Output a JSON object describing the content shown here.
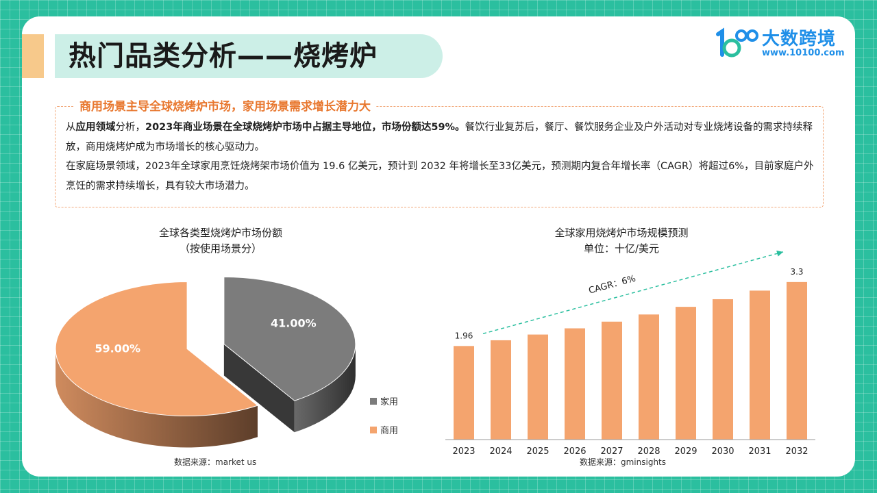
{
  "header": {
    "title": "热门品类分析——烧烤炉",
    "logo_name": "大数跨境",
    "logo_url": "www.10100.com"
  },
  "summary": {
    "subtitle": "商用场景主导全球烧烤炉市场，家用场景需求增长潜力大",
    "p1_a": "从",
    "p1_b": "应用领域",
    "p1_c": "分析，",
    "p1_d": "2023年商业场景在全球烧烤炉市场中占据主导地位，市场份额达59%。",
    "p1_e": "餐饮行业复苏后，餐厅、餐饮服务企业及户外活动对专业烧烤设备的需求持续释放，商用烧烤炉成为市场增长的核心驱动力。",
    "p2": "在家庭场景领域，2023年全球家用烹饪烧烤架市场价值为 19.6 亿美元，预计到 2032 年将增长至33亿美元，预测期内复合年增长率（CAGR）将超过6%，目前家庭户外烹饪的需求持续增长，具有较大市场潜力。"
  },
  "colors": {
    "teal": "#2bbf9f",
    "orange": "#f4a46e",
    "gray": "#7c7c7c",
    "accent_text": "#e8772e",
    "logo_blue": "#1f8fe8"
  },
  "pie": {
    "title_line1": "全球各类型烧烤炉市场份额",
    "title_line2": "（按使用场景分）",
    "source": "数据来源：market us",
    "chart_data": {
      "type": "pie",
      "slices": [
        {
          "name": "家用",
          "value": 41.0,
          "label": "41.00%",
          "color": "#7c7c7c"
        },
        {
          "name": "商用",
          "value": 59.0,
          "label": "59.00%",
          "color": "#f4a46e"
        }
      ],
      "legend_position": "right"
    }
  },
  "bar": {
    "title_line1": "全球家用烧烤炉市场规模预测",
    "title_line2": "单位：十亿/美元",
    "source": "数据来源：gminsights",
    "cagr_label": "CAGR：6%",
    "chart_data": {
      "type": "bar",
      "categories": [
        "2023",
        "2024",
        "2025",
        "2026",
        "2027",
        "2028",
        "2029",
        "2030",
        "2031",
        "2032"
      ],
      "values": [
        1.96,
        2.08,
        2.2,
        2.33,
        2.47,
        2.62,
        2.78,
        2.94,
        3.12,
        3.3
      ],
      "data_labels": {
        "2023": "1.96",
        "2032": "3.3"
      },
      "ylim": [
        0,
        3.8
      ],
      "grid": false,
      "color": "#f4a46e"
    }
  }
}
